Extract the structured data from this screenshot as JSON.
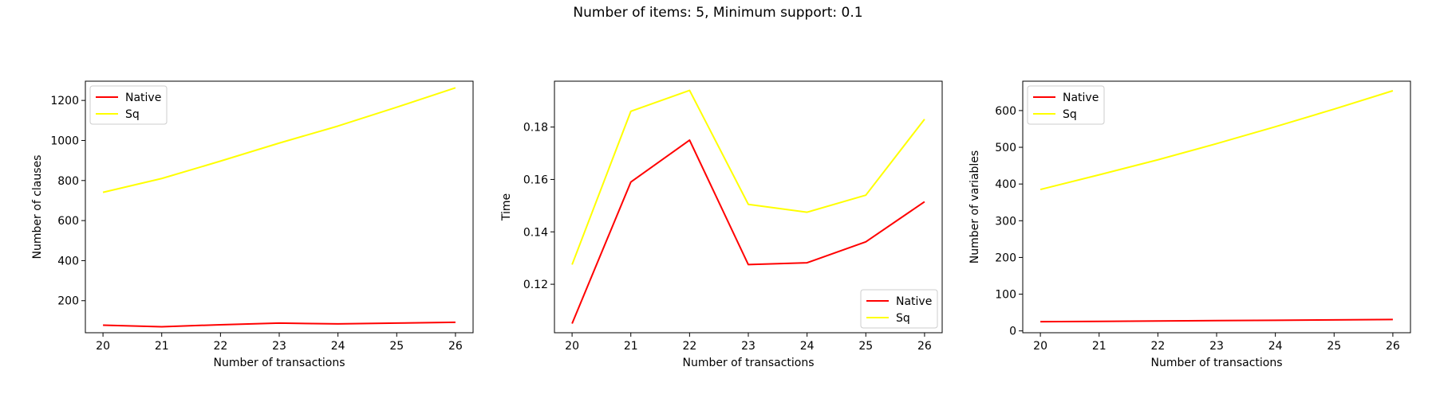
{
  "suptitle": "Number of items: 5, Minimum support: 0.1",
  "colors": {
    "native": "#ff0000",
    "sq": "#ffff00"
  },
  "chart_data": [
    {
      "type": "line",
      "title": "",
      "xlabel": "Number of transactions",
      "ylabel": "Number of clauses",
      "x": [
        20,
        21,
        22,
        23,
        24,
        25,
        26
      ],
      "xticks": [
        20,
        21,
        22,
        23,
        24,
        25,
        26
      ],
      "yticks": [
        200,
        400,
        600,
        800,
        1000,
        1200
      ],
      "xlim": [
        19.7,
        26.3
      ],
      "ylim": [
        40,
        1296
      ],
      "legend": "top-left",
      "grid": false,
      "series": [
        {
          "name": "Native",
          "color": "#ff0000",
          "values": [
            78,
            70,
            80,
            88,
            84,
            88,
            92
          ]
        },
        {
          "name": "Sq",
          "color": "#ffff00",
          "values": [
            741,
            810,
            897,
            987,
            1072,
            1166,
            1263
          ]
        }
      ]
    },
    {
      "type": "line",
      "title": "",
      "xlabel": "Number of transactions",
      "ylabel": "Time",
      "x": [
        20,
        21,
        22,
        23,
        24,
        25,
        26
      ],
      "xticks": [
        20,
        21,
        22,
        23,
        24,
        25,
        26
      ],
      "yticks": [
        0.12,
        0.14,
        0.16,
        0.18
      ],
      "xlim": [
        19.7,
        26.3
      ],
      "ylim": [
        0.1015,
        0.1975
      ],
      "legend": "bottom-right",
      "grid": false,
      "series": [
        {
          "name": "Native",
          "color": "#ff0000",
          "values": [
            0.105,
            0.159,
            0.175,
            0.1275,
            0.1282,
            0.1362,
            0.1515
          ]
        },
        {
          "name": "Sq",
          "color": "#ffff00",
          "values": [
            0.1275,
            0.186,
            0.194,
            0.1505,
            0.1475,
            0.154,
            0.183
          ]
        }
      ]
    },
    {
      "type": "line",
      "title": "",
      "xlabel": "Number of transactions",
      "ylabel": "Number of variables",
      "x": [
        20,
        21,
        22,
        23,
        24,
        25,
        26
      ],
      "xticks": [
        20,
        21,
        22,
        23,
        24,
        25,
        26
      ],
      "yticks": [
        0,
        100,
        200,
        300,
        400,
        500,
        600
      ],
      "xlim": [
        19.7,
        26.3
      ],
      "ylim": [
        -5,
        680
      ],
      "legend": "top-left",
      "grid": false,
      "series": [
        {
          "name": "Native",
          "color": "#ff0000",
          "values": [
            25,
            26,
            27,
            28,
            29,
            30,
            31
          ]
        },
        {
          "name": "Sq",
          "color": "#ffff00",
          "values": [
            385,
            425,
            466,
            510,
            556,
            604,
            654
          ]
        }
      ]
    }
  ]
}
